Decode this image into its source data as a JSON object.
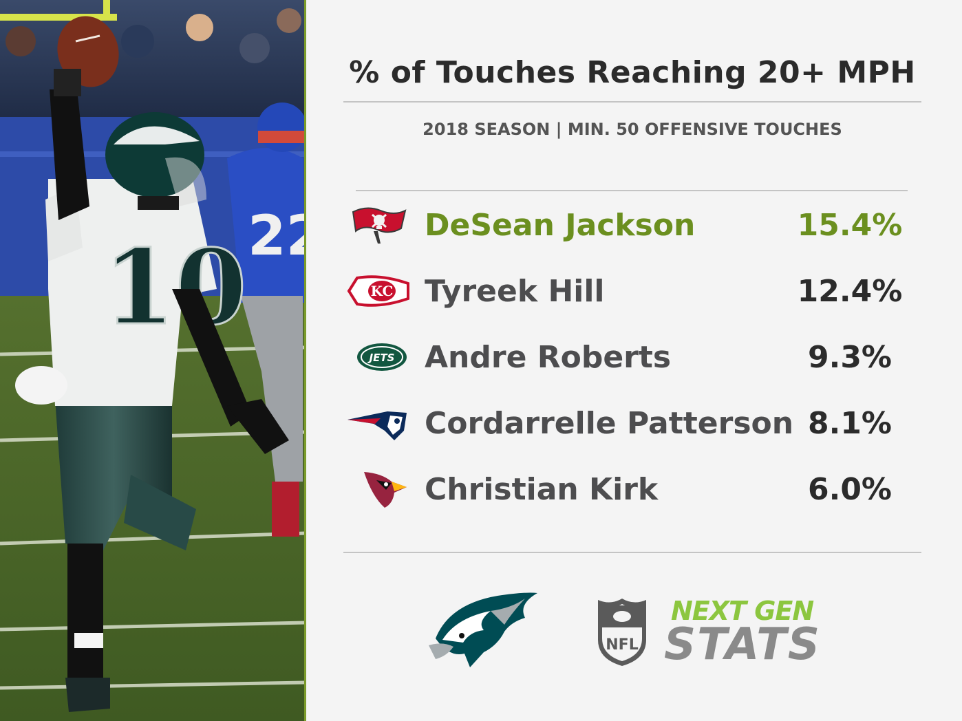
{
  "header": {
    "title": "% of Touches Reaching 20+ MPH",
    "subtitle": "2018 SEASON  |  MIN. 50 OFFENSIVE TOUCHES"
  },
  "photo": {
    "jersey_number": "10",
    "opponent_number": "22"
  },
  "leaderboard": [
    {
      "team_logo": "buccaneers-flag-logo",
      "name": "DeSean Jackson",
      "pct": "15.4%",
      "highlight": true
    },
    {
      "team_logo": "chiefs-arrowhead-logo",
      "name": "Tyreek Hill",
      "pct": "12.4%",
      "highlight": false
    },
    {
      "team_logo": "jets-oval-logo",
      "name": "Andre Roberts",
      "pct": "9.3%",
      "highlight": false
    },
    {
      "team_logo": "patriots-head-logo",
      "name": "Cordarrelle Patterson",
      "pct": "8.1%",
      "highlight": false
    },
    {
      "team_logo": "cardinals-bird-logo",
      "name": "Christian Kirk",
      "pct": "6.0%",
      "highlight": false
    }
  ],
  "footer": {
    "team_logo": "eagles-head-logo",
    "nfl_shield_text": "NFL",
    "jets_text": "JETS",
    "kc_text": "KC",
    "brand_line1": "NEXT GEN",
    "brand_line2": "STATS"
  },
  "colors": {
    "highlight": "#6b8f1f",
    "text": "#4d4d4f",
    "brand_green": "#8cc63f",
    "brand_gray": "#8a8a8a"
  }
}
